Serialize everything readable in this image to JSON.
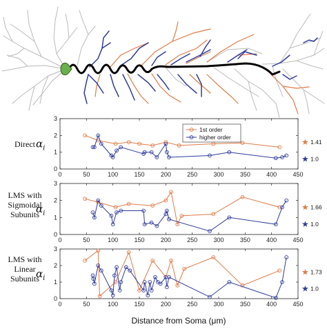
{
  "colors": {
    "first_order": "#e07a45",
    "higher_order": "#2e3a9a",
    "soma": "#6ab04c",
    "main_dendrite": "#000000",
    "gray_dendrite": "#b9b9b9"
  },
  "chart_data": [
    {
      "type": "line",
      "row_label": [
        "Direct"
      ],
      "ylabel": "α",
      "ylabel_sub": "i",
      "xlabel": "",
      "xlim": [
        0,
        450
      ],
      "ylim": [
        0,
        3
      ],
      "xticks": [
        0,
        50,
        100,
        150,
        200,
        250,
        300,
        350,
        400,
        450
      ],
      "yticks": [
        0,
        1,
        2,
        3
      ],
      "legend": {
        "position": "top-center",
        "entries": [
          "1st order",
          "higher order"
        ]
      },
      "series": [
        {
          "name": "1st order",
          "color_key": "first_order",
          "x": [
            47,
            72,
            105,
            130,
            150,
            175,
            200,
            225,
            290,
            345,
            415
          ],
          "y": [
            2.0,
            1.7,
            1.5,
            1.6,
            1.5,
            1.4,
            1.6,
            1.4,
            1.5,
            1.55,
            1.3
          ]
        },
        {
          "name": "higher order",
          "color_key": "higher_order",
          "x": [
            62,
            65,
            72,
            78,
            97,
            100,
            107,
            115,
            158,
            160,
            173,
            183,
            200,
            202,
            206,
            283,
            320,
            408,
            420,
            428
          ],
          "y": [
            1.3,
            1.3,
            2.0,
            1.5,
            0.8,
            0.7,
            1.1,
            1.3,
            0.9,
            1.0,
            1.0,
            0.7,
            1.5,
            1.0,
            0.7,
            0.8,
            1.0,
            0.65,
            0.7,
            0.8
          ]
        }
      ],
      "end_labels": [
        {
          "text": "1.41",
          "color_key": "first_order"
        },
        {
          "text": "1.0",
          "color_key": "higher_order"
        }
      ]
    },
    {
      "type": "line",
      "row_label": [
        "LMS with",
        "Sigmoidal",
        "Subunits"
      ],
      "ylabel": "α",
      "ylabel_sub": "i",
      "xlabel": "",
      "xlim": [
        0,
        450
      ],
      "ylim": [
        0,
        3
      ],
      "xticks": [
        0,
        50,
        100,
        150,
        200,
        250,
        300,
        350,
        400,
        450
      ],
      "yticks": [
        0,
        1,
        2,
        3
      ],
      "series": [
        {
          "name": "1st order",
          "color_key": "first_order",
          "x": [
            47,
            72,
            105,
            130,
            175,
            200,
            210,
            222,
            230,
            290,
            345,
            415
          ],
          "y": [
            2.1,
            1.9,
            1.6,
            1.8,
            1.7,
            2.0,
            2.5,
            0.6,
            1.1,
            1.2,
            2.2,
            1.6
          ]
        },
        {
          "name": "higher order",
          "color_key": "higher_order",
          "x": [
            62,
            65,
            72,
            78,
            97,
            100,
            107,
            115,
            158,
            160,
            173,
            183,
            200,
            202,
            206,
            283,
            320,
            408,
            420,
            428
          ],
          "y": [
            1.3,
            1.0,
            2.0,
            1.7,
            1.1,
            0.6,
            1.3,
            1.4,
            1.4,
            0.6,
            0.7,
            0.5,
            1.2,
            1.4,
            0.9,
            0.2,
            1.0,
            0.6,
            1.6,
            2.0
          ]
        }
      ],
      "end_labels": [
        {
          "text": "1.66",
          "color_key": "first_order"
        },
        {
          "text": "1.0",
          "color_key": "higher_order"
        }
      ]
    },
    {
      "type": "line",
      "row_label": [
        "LMS with",
        "Linear",
        "Subunits"
      ],
      "ylabel": "α",
      "ylabel_sub": "i",
      "xlabel": "Distance from Soma (μm)",
      "xlim": [
        0,
        450
      ],
      "ylim": [
        0,
        3
      ],
      "xticks": [
        0,
        50,
        100,
        150,
        200,
        250,
        300,
        350,
        400,
        450
      ],
      "yticks": [
        0,
        1,
        2,
        3
      ],
      "series": [
        {
          "name": "1st order",
          "color_key": "first_order",
          "x": [
            47,
            72,
            75,
            105,
            130,
            150,
            175,
            200,
            210,
            222,
            235,
            290,
            345,
            415
          ],
          "y": [
            2.3,
            2.9,
            0.15,
            1.0,
            2.8,
            0.5,
            2.3,
            1.3,
            2.3,
            0.8,
            1.8,
            2.5,
            0.8,
            1.7
          ]
        },
        {
          "name": "higher order",
          "color_key": "higher_order",
          "x": [
            62,
            63,
            65,
            72,
            78,
            97,
            100,
            103,
            107,
            113,
            115,
            125,
            132,
            158,
            160,
            166,
            170,
            173,
            180,
            185,
            190,
            200,
            202,
            206,
            283,
            320,
            408,
            420,
            428
          ],
          "y": [
            1.4,
            1.2,
            0.9,
            2.0,
            1.7,
            0.5,
            0.2,
            1.4,
            1.9,
            0.5,
            1.0,
            1.9,
            1.7,
            0.5,
            1.0,
            0.2,
            1.0,
            0.5,
            1.3,
            1.0,
            0.9,
            1.3,
            0.7,
            1.3,
            0.1,
            1.0,
            0.05,
            1.0,
            2.5
          ]
        }
      ],
      "end_labels": [
        {
          "text": "1.73",
          "color_key": "first_order"
        },
        {
          "text": "1.0",
          "color_key": "higher_order"
        }
      ]
    }
  ]
}
